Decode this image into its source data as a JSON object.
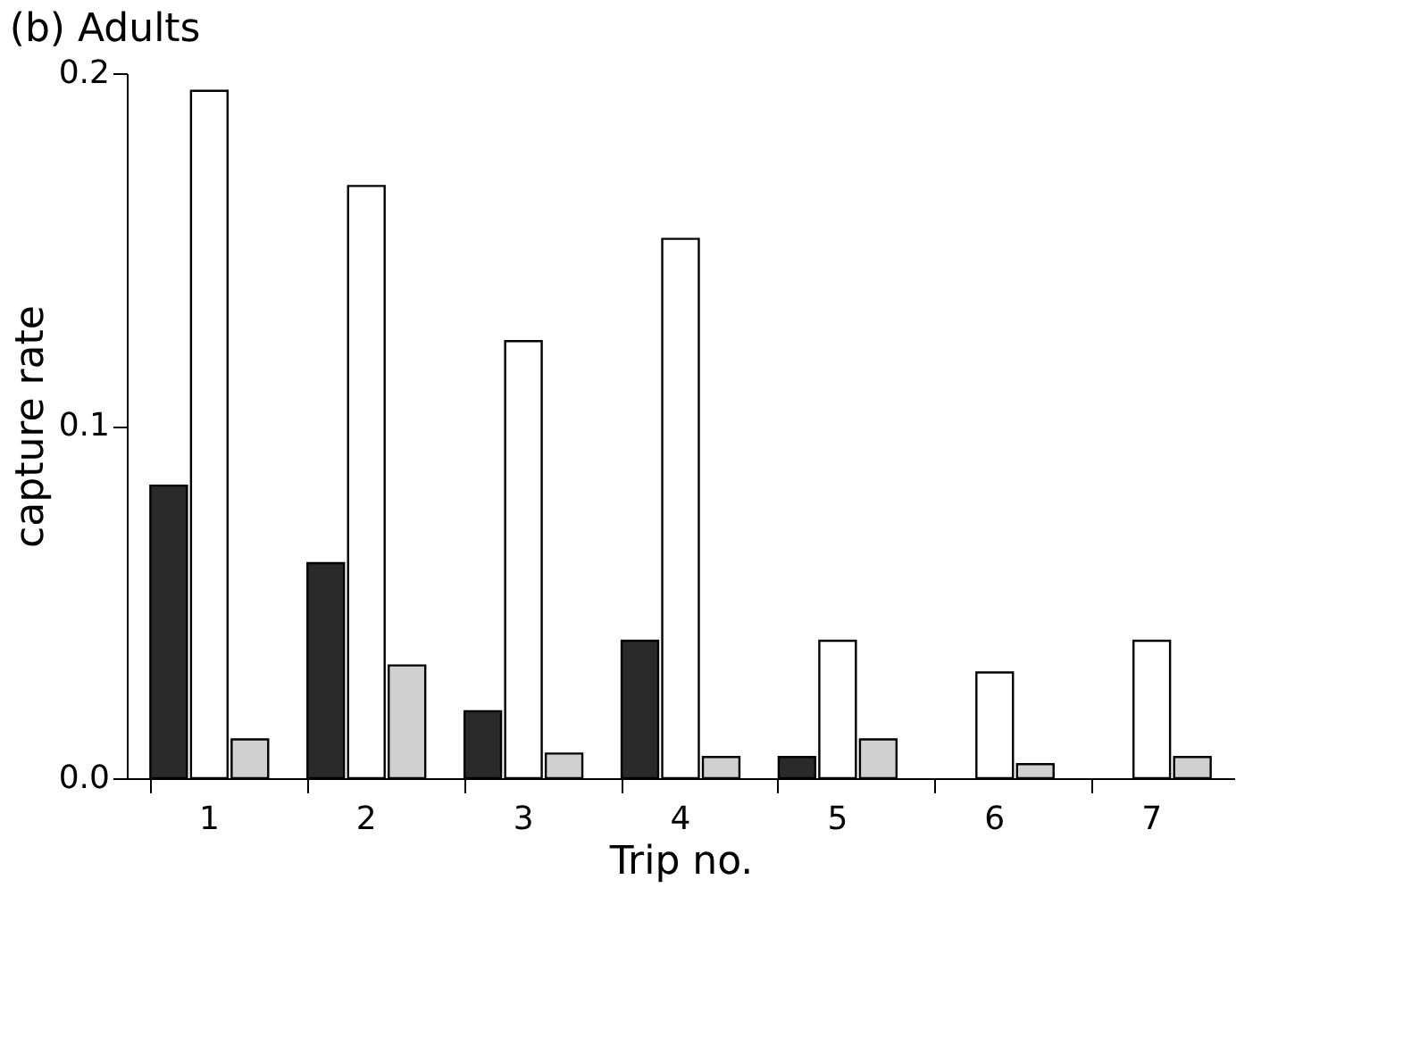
{
  "chart_data": {
    "type": "bar",
    "title": "(b) Adults",
    "xlabel": "Trip no.",
    "ylabel": "capture rate",
    "categories": [
      "1",
      "2",
      "3",
      "4",
      "5",
      "6",
      "7"
    ],
    "series": [
      {
        "color": "#2a2a2a",
        "values": [
          0.083,
          0.061,
          0.019,
          0.039,
          0.006,
          0.0,
          0.0
        ]
      },
      {
        "color": "#ffffff",
        "values": [
          0.195,
          0.168,
          0.124,
          0.153,
          0.039,
          0.03,
          0.039
        ]
      },
      {
        "color": "#d0d0d0",
        "values": [
          0.011,
          0.032,
          0.007,
          0.006,
          0.011,
          0.004,
          0.006
        ]
      }
    ],
    "ylim": [
      0,
      0.2
    ],
    "yticks": [
      {
        "value": 0,
        "label": "0.0"
      },
      {
        "value": 0.1,
        "label": "0.1"
      },
      {
        "value": 0.2,
        "label": "0.2"
      }
    ],
    "grid": false
  }
}
